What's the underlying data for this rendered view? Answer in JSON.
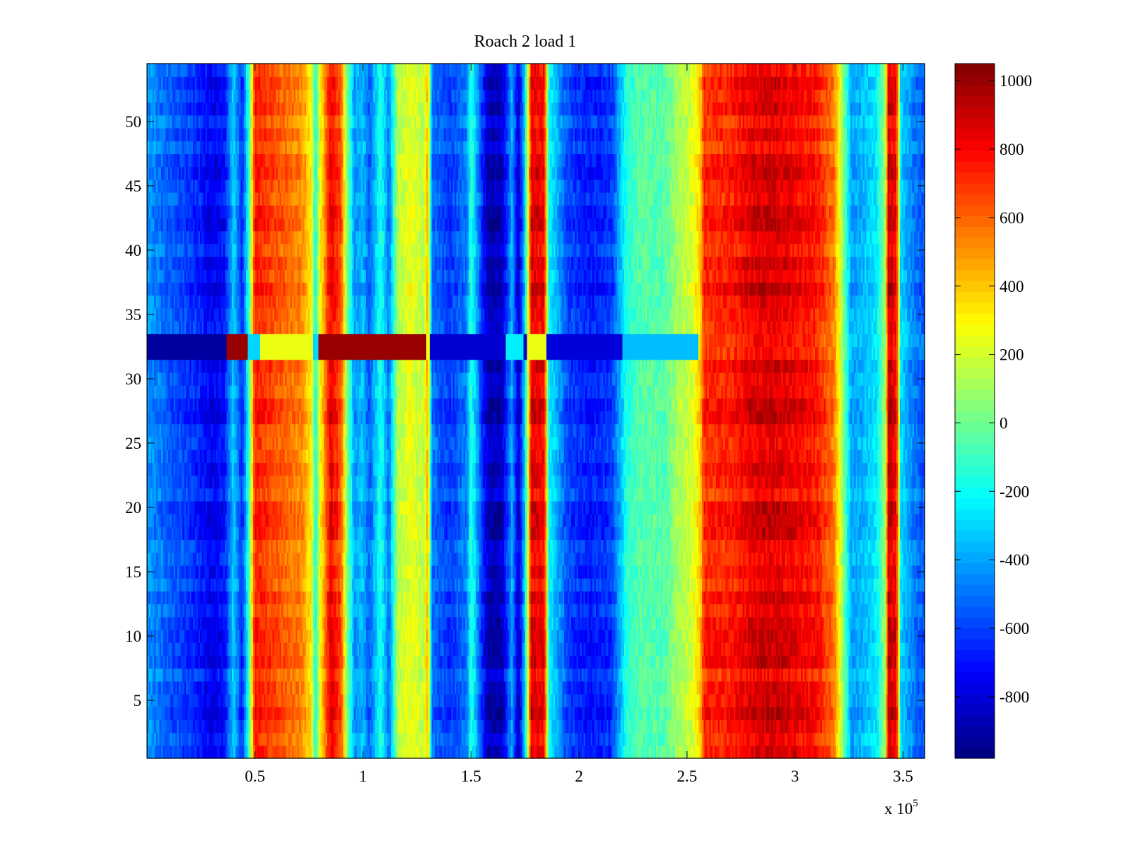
{
  "chart_data": {
    "type": "heatmap",
    "title": "Roach 2 load 1",
    "xlabel": "",
    "ylabel": "",
    "x_multiplier_label": {
      "base": "x 10",
      "exponent": "5"
    },
    "xlim": [
      0,
      3.6
    ],
    "ylim": [
      0.5,
      54.5
    ],
    "x_ticks": [
      0.5,
      1,
      1.5,
      2,
      2.5,
      3,
      3.5
    ],
    "x_tick_labels": [
      "0.5",
      "1",
      "1.5",
      "2",
      "2.5",
      "3",
      "3.5"
    ],
    "y_ticks": [
      5,
      10,
      15,
      20,
      25,
      30,
      35,
      40,
      45,
      50
    ],
    "y_tick_labels": [
      "5",
      "10",
      "15",
      "20",
      "25",
      "30",
      "35",
      "40",
      "45",
      "50"
    ],
    "colormap": "jet",
    "clim": [
      -980,
      1050
    ],
    "colorbar_ticks": [
      1000,
      800,
      600,
      400,
      200,
      0,
      -200,
      -400,
      -600,
      -800
    ],
    "colorbar_tick_labels": [
      "1000",
      "800",
      "600",
      "400",
      "200",
      "0",
      "-200",
      "-400",
      "-600",
      "-800"
    ],
    "rows": 54,
    "column_profile": [
      [
        0.0,
        -420
      ],
      [
        0.12,
        -560
      ],
      [
        0.22,
        -640
      ],
      [
        0.3,
        -760
      ],
      [
        0.36,
        -700
      ],
      [
        0.4,
        -300
      ],
      [
        0.44,
        -650
      ],
      [
        0.47,
        -150
      ],
      [
        0.5,
        750
      ],
      [
        0.6,
        640
      ],
      [
        0.72,
        520
      ],
      [
        0.76,
        300
      ],
      [
        0.78,
        -150
      ],
      [
        0.8,
        250
      ],
      [
        0.85,
        850
      ],
      [
        0.9,
        620
      ],
      [
        0.92,
        150
      ],
      [
        0.96,
        -420
      ],
      [
        1.0,
        -350
      ],
      [
        1.03,
        -550
      ],
      [
        1.08,
        -150
      ],
      [
        1.12,
        -500
      ],
      [
        1.16,
        150
      ],
      [
        1.22,
        250
      ],
      [
        1.28,
        150
      ],
      [
        1.3,
        450
      ],
      [
        1.32,
        -500
      ],
      [
        1.4,
        -620
      ],
      [
        1.48,
        -480
      ],
      [
        1.5,
        -120
      ],
      [
        1.55,
        -620
      ],
      [
        1.58,
        -880
      ],
      [
        1.64,
        -860
      ],
      [
        1.66,
        -700
      ],
      [
        1.69,
        -380
      ],
      [
        1.72,
        -850
      ],
      [
        1.75,
        -300
      ],
      [
        1.78,
        850
      ],
      [
        1.84,
        800
      ],
      [
        1.86,
        -200
      ],
      [
        1.95,
        -600
      ],
      [
        2.05,
        -680
      ],
      [
        2.15,
        -620
      ],
      [
        2.2,
        -300
      ],
      [
        2.22,
        -150
      ],
      [
        2.28,
        -50
      ],
      [
        2.4,
        -50
      ],
      [
        2.45,
        100
      ],
      [
        2.52,
        200
      ],
      [
        2.56,
        380
      ],
      [
        2.58,
        720
      ],
      [
        2.7,
        740
      ],
      [
        2.8,
        850
      ],
      [
        2.9,
        880
      ],
      [
        3.0,
        820
      ],
      [
        3.1,
        760
      ],
      [
        3.18,
        560
      ],
      [
        3.22,
        100
      ],
      [
        3.26,
        -400
      ],
      [
        3.3,
        -380
      ],
      [
        3.38,
        -250
      ],
      [
        3.42,
        150
      ],
      [
        3.43,
        900
      ],
      [
        3.47,
        820
      ],
      [
        3.49,
        -300
      ],
      [
        3.55,
        -480
      ],
      [
        3.6,
        -560
      ]
    ],
    "horizontal_band": {
      "rows": [
        32,
        33
      ],
      "segments": [
        [
          0.0,
          0.37,
          -920
        ],
        [
          0.37,
          0.47,
          1000
        ],
        [
          0.47,
          0.52,
          -300
        ],
        [
          0.52,
          0.77,
          250
        ],
        [
          0.77,
          0.79,
          -300
        ],
        [
          0.79,
          1.29,
          1000
        ],
        [
          1.29,
          1.31,
          250
        ],
        [
          1.31,
          1.66,
          -820
        ],
        [
          1.66,
          1.74,
          -250
        ],
        [
          1.74,
          1.76,
          -820
        ],
        [
          1.76,
          1.85,
          250
        ],
        [
          1.85,
          2.2,
          -800
        ],
        [
          2.2,
          2.55,
          -350
        ]
      ]
    }
  }
}
